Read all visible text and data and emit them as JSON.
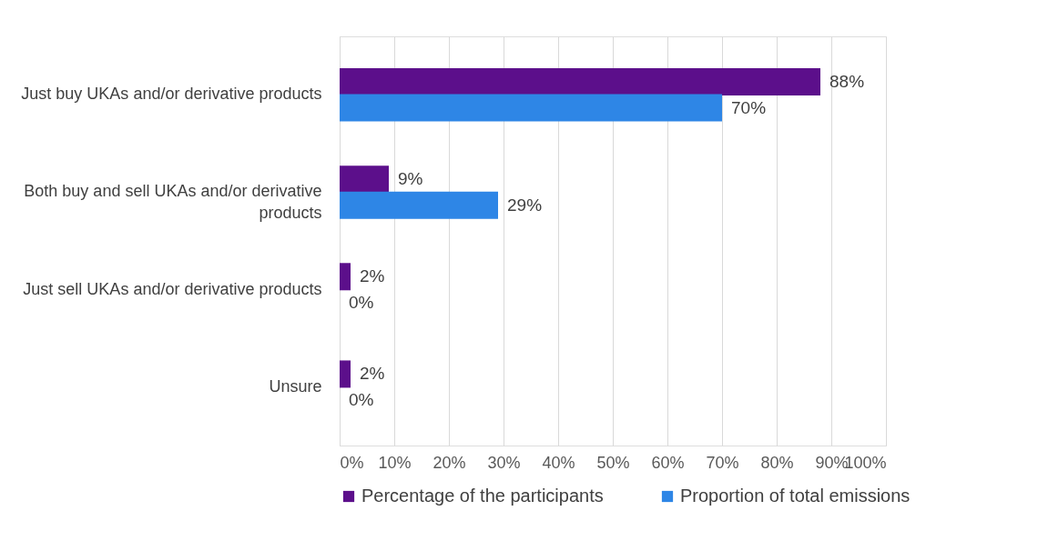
{
  "chart_data": {
    "type": "bar",
    "orientation": "horizontal",
    "categories": [
      "Just buy UKAs and/or derivative products",
      "Both buy and sell  UKAs and/or derivative products",
      "Just sell UKAs and/or derivative products",
      "Unsure"
    ],
    "series": [
      {
        "name": "Percentage of the participants",
        "color": "#5c0f8b",
        "values": [
          88,
          9,
          2,
          2
        ],
        "value_labels": [
          "88%",
          "9%",
          "2%",
          "2%"
        ]
      },
      {
        "name": "Proportion of total emissions",
        "color": "#2e86e6",
        "values": [
          70,
          29,
          0,
          0
        ],
        "value_labels": [
          "70%",
          "29%",
          "0%",
          "0%"
        ]
      }
    ],
    "xlim": [
      0,
      100
    ],
    "xticks": [
      {
        "value": 0,
        "label": "0%"
      },
      {
        "value": 10,
        "label": "10%"
      },
      {
        "value": 20,
        "label": "20%"
      },
      {
        "value": 30,
        "label": "30%"
      },
      {
        "value": 40,
        "label": "40%"
      },
      {
        "value": 50,
        "label": "50%"
      },
      {
        "value": 60,
        "label": "60%"
      },
      {
        "value": 70,
        "label": "70%"
      },
      {
        "value": 80,
        "label": "80%"
      },
      {
        "value": 90,
        "label": "90%"
      },
      {
        "value": 100,
        "label": "100%"
      }
    ],
    "grid": "x",
    "legend": "bottom"
  }
}
